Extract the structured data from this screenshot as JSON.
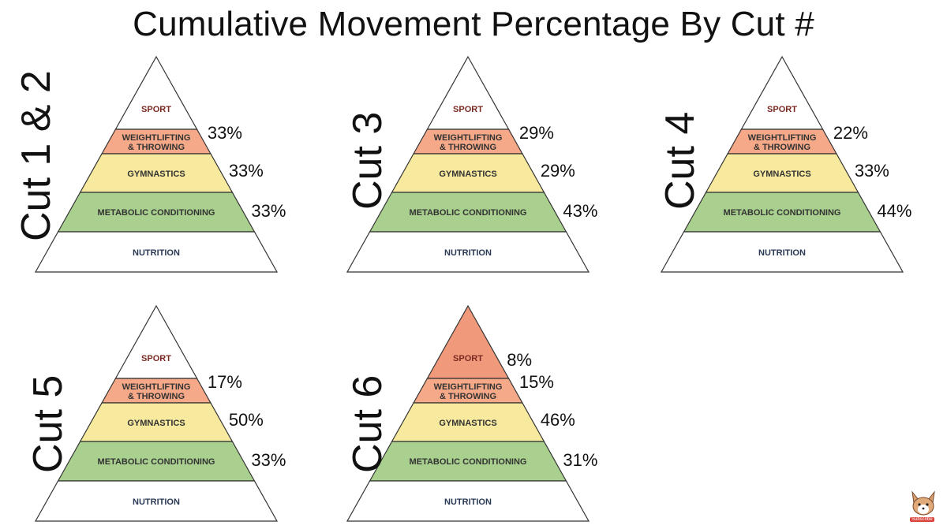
{
  "title": "Cumulative Movement Percentage By Cut #",
  "colors": {
    "sport": "#ffffff",
    "sport_highlight": "#f0997b",
    "weightlifting": "#f6a988",
    "gymnastics": "#f7ea9f",
    "metcon": "#a9d08e",
    "nutrition": "#ffffff",
    "outline": "#333333",
    "sport_text": "#7a2a22",
    "band_text": "#333333",
    "nutrition_text": "#2a3a55"
  },
  "bands": {
    "sport": "SPORT",
    "weightlifting_line1": "WEIGHTLIFTING",
    "weightlifting_line2": "& THROWING",
    "gymnastics": "GYMNASTICS",
    "metcon": "METABOLIC CONDITIONING",
    "nutrition": "NUTRITION"
  },
  "panels": [
    {
      "label": "Cut 1 & 2",
      "sport": "",
      "weightlifting": "33%",
      "gymnastics": "33%",
      "metcon": "33%"
    },
    {
      "label": "Cut 3",
      "sport": "",
      "weightlifting": "29%",
      "gymnastics": "29%",
      "metcon": "43%"
    },
    {
      "label": "Cut 4",
      "sport": "",
      "weightlifting": "22%",
      "gymnastics": "33%",
      "metcon": "44%"
    },
    {
      "label": "Cut 5",
      "sport": "",
      "weightlifting": "17%",
      "gymnastics": "50%",
      "metcon": "33%"
    },
    {
      "label": "Cut 6",
      "sport": "8%",
      "weightlifting": "15%",
      "gymnastics": "46%",
      "metcon": "31%"
    }
  ],
  "badge": {
    "text": "Subscribe",
    "icon": "corgi-icon"
  }
}
